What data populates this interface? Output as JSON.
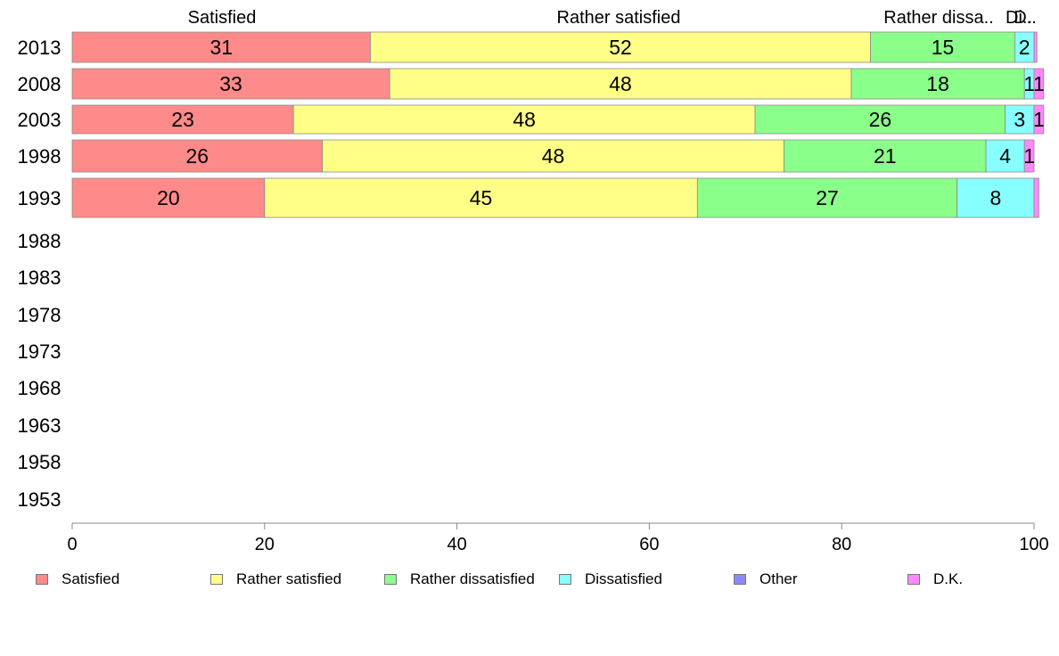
{
  "chart_data": {
    "type": "bar",
    "orientation": "horizontal",
    "stacked": true,
    "categories": [
      "2013",
      "2008",
      "2003",
      "1998",
      "1993",
      "1988",
      "1983",
      "1978",
      "1973",
      "1968",
      "1963",
      "1958",
      "1953"
    ],
    "series": [
      {
        "name": "Satisfied",
        "values": [
          31,
          33,
          23,
          26,
          20,
          null,
          null,
          null,
          null,
          null,
          null,
          null,
          null
        ]
      },
      {
        "name": "Rather satisfied",
        "values": [
          52,
          48,
          48,
          48,
          45,
          null,
          null,
          null,
          null,
          null,
          null,
          null,
          null
        ]
      },
      {
        "name": "Rather dissatisfied",
        "values": [
          15,
          18,
          26,
          21,
          27,
          null,
          null,
          null,
          null,
          null,
          null,
          null,
          null
        ]
      },
      {
        "name": "Dissatisfied",
        "values": [
          2,
          1,
          3,
          4,
          8,
          null,
          null,
          null,
          null,
          null,
          null,
          null,
          null
        ]
      },
      {
        "name": "Other",
        "values": [
          0,
          0,
          0,
          0,
          0,
          null,
          null,
          null,
          null,
          null,
          null,
          null,
          null
        ]
      },
      {
        "name": "D.K.",
        "values": [
          0.3,
          1,
          1,
          1,
          0.5,
          null,
          null,
          null,
          null,
          null,
          null,
          null,
          null
        ]
      }
    ],
    "data_labels": [
      [
        "31",
        "52",
        "15",
        "2",
        "",
        ""
      ],
      [
        "33",
        "48",
        "18",
        "1",
        "",
        "1"
      ],
      [
        "23",
        "48",
        "26",
        "3",
        "",
        "1"
      ],
      [
        "26",
        "48",
        "21",
        "4",
        "",
        "1"
      ],
      [
        "20",
        "45",
        "27",
        "8",
        "",
        ""
      ]
    ],
    "top_labels": [
      "Satisfied",
      "Rather satisfied",
      "Rather dissa..",
      "Di..",
      "D.."
    ],
    "colors": [
      "#ff8a8a",
      "#ffff88",
      "#8aff8a",
      "#88ffff",
      "#8a8aff",
      "#ff88ff"
    ],
    "x_ticks": [
      "0",
      "20",
      "40",
      "60",
      "80",
      "100"
    ],
    "xlim": [
      0,
      100
    ],
    "grid": false,
    "legend_position": "bottom",
    "title": "",
    "xlabel": "",
    "ylabel": ""
  }
}
